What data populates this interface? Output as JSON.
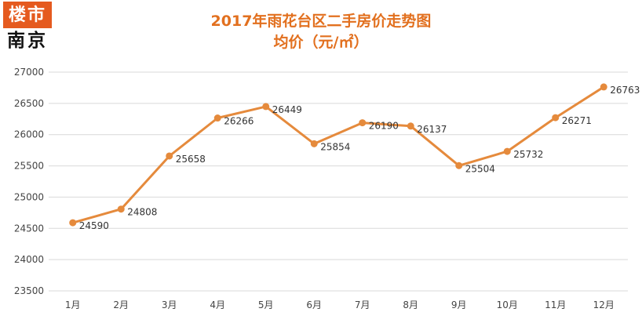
{
  "logo": {
    "line1": "楼市",
    "line2": "南京"
  },
  "chart_data": {
    "type": "line",
    "title": "2017年雨花台区二手房价走势图",
    "subtitle": "均价（元/㎡）",
    "categories": [
      "1月",
      "2月",
      "3月",
      "4月",
      "5月",
      "6月",
      "7月",
      "8月",
      "9月",
      "10月",
      "11月",
      "12月"
    ],
    "values": [
      24590,
      24808,
      25658,
      26266,
      26449,
      25854,
      26190,
      26137,
      25504,
      25732,
      26271,
      26763
    ],
    "data_labels": [
      "24590",
      "24808",
      "25658",
      "26266",
      "26449",
      "25854",
      "26190",
      "26137",
      "25504",
      "25732",
      "26271",
      "26763"
    ],
    "y_ticks": [
      "23500",
      "24000",
      "24500",
      "25000",
      "25500",
      "26000",
      "26500",
      "27000"
    ],
    "ylim": [
      23500,
      27000
    ],
    "grid": true,
    "legend": "none",
    "series_color": "#e58a3c"
  }
}
